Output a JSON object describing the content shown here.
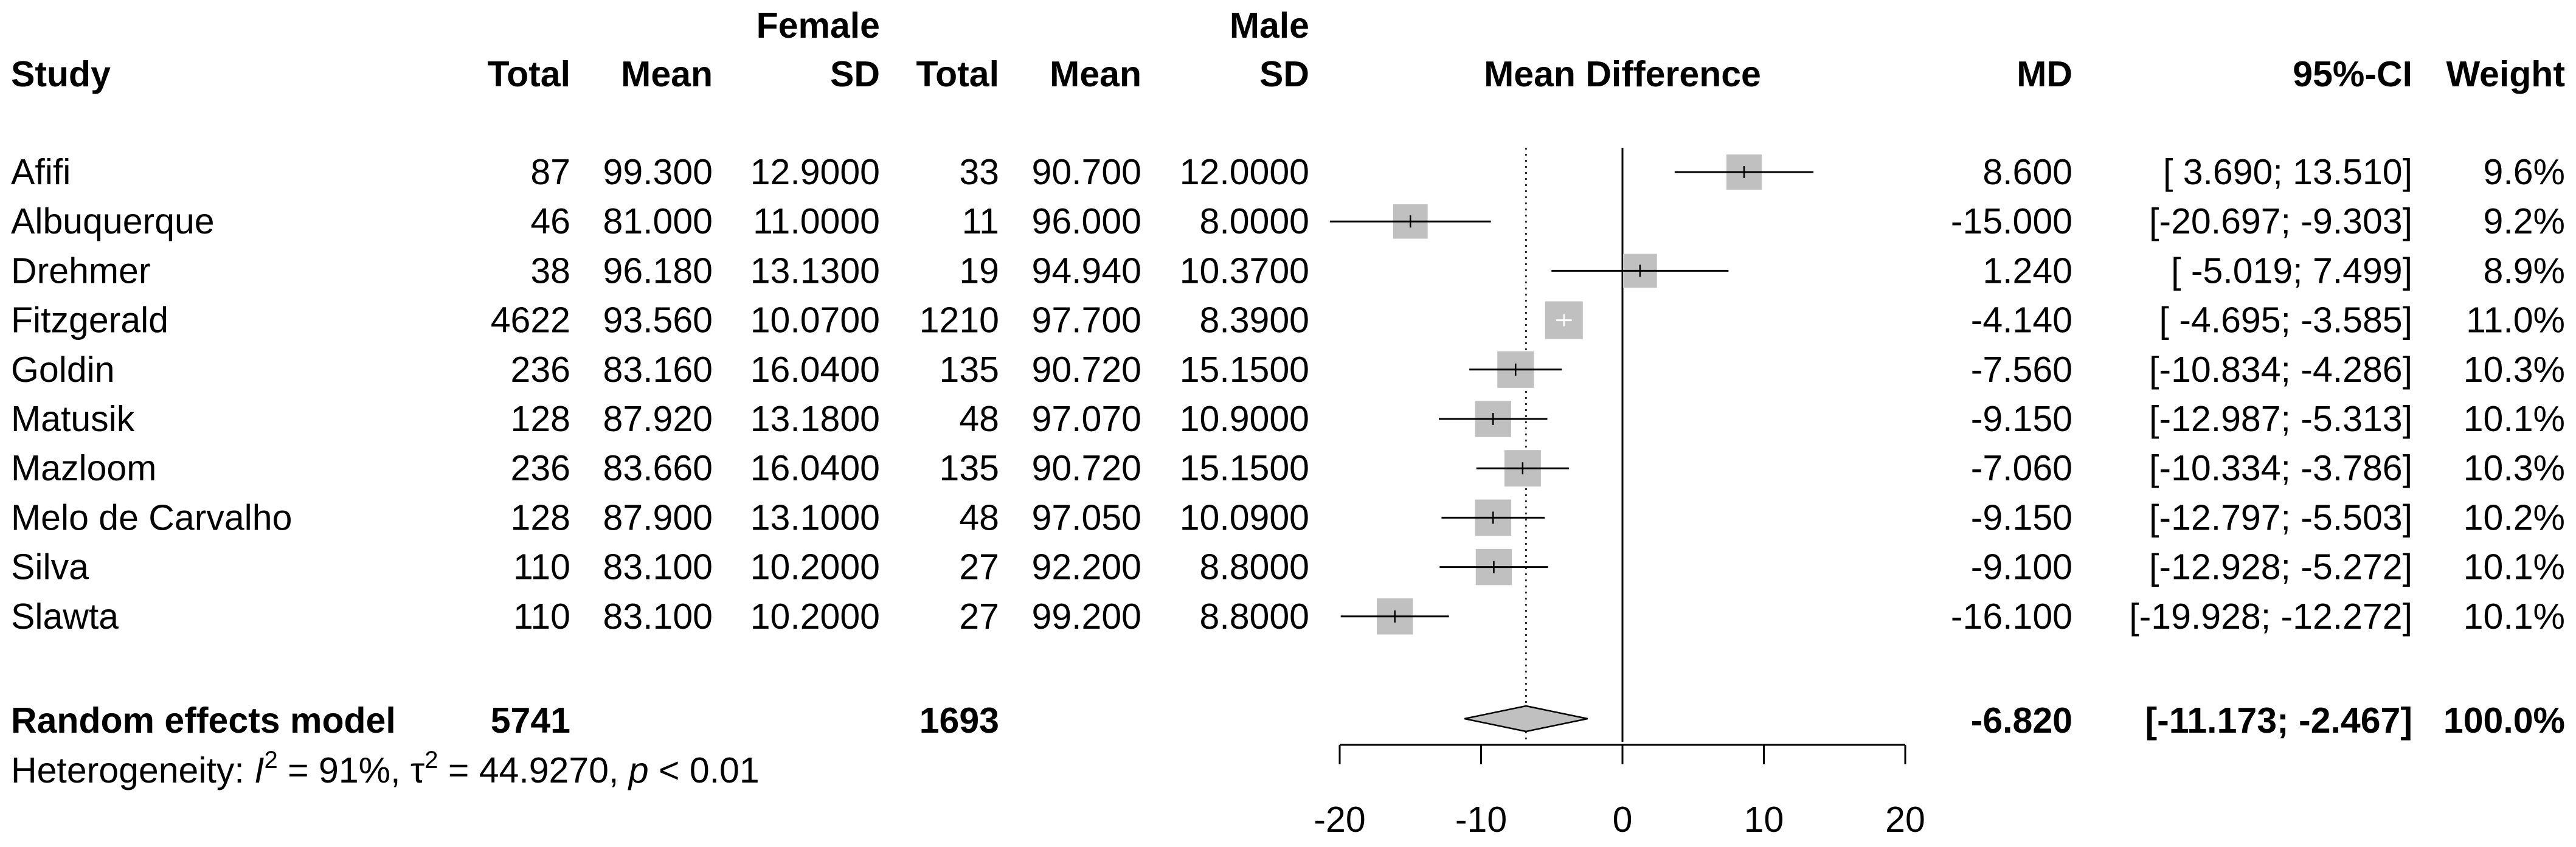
{
  "chart_data": {
    "type": "forest",
    "headers": {
      "group1": "Female",
      "group2": "Male",
      "study": "Study",
      "total": "Total",
      "mean": "Mean",
      "sd": "SD",
      "plot": "Mean Difference",
      "md": "MD",
      "ci": "95%-CI",
      "weight": "Weight"
    },
    "studies": [
      {
        "study": "Afifi",
        "total_f": "87",
        "mean_f": "99.300",
        "sd_f": "12.9000",
        "total_m": "33",
        "mean_m": "90.700",
        "sd_m": "12.0000",
        "md": 8.6,
        "lo": 3.69,
        "hi": 13.51,
        "md_text": "8.600",
        "ci_text": "[ 3.690; 13.510]",
        "weight_text": "9.6%",
        "weight": 9.6
      },
      {
        "study": "Albuquerque",
        "total_f": "46",
        "mean_f": "81.000",
        "sd_f": "11.0000",
        "total_m": "11",
        "mean_m": "96.000",
        "sd_m": "8.0000",
        "md": -15.0,
        "lo": -20.697,
        "hi": -9.303,
        "md_text": "-15.000",
        "ci_text": "[-20.697; -9.303]",
        "weight_text": "9.2%",
        "weight": 9.2
      },
      {
        "study": "Drehmer",
        "total_f": "38",
        "mean_f": "96.180",
        "sd_f": "13.1300",
        "total_m": "19",
        "mean_m": "94.940",
        "sd_m": "10.3700",
        "md": 1.24,
        "lo": -5.019,
        "hi": 7.499,
        "md_text": "1.240",
        "ci_text": "[ -5.019; 7.499]",
        "weight_text": "8.9%",
        "weight": 8.9
      },
      {
        "study": "Fitzgerald",
        "total_f": "4622",
        "mean_f": "93.560",
        "sd_f": "10.0700",
        "total_m": "1210",
        "mean_m": "97.700",
        "sd_m": "8.3900",
        "md": -4.14,
        "lo": -4.695,
        "hi": -3.585,
        "md_text": "-4.140",
        "ci_text": "[ -4.695; -3.585]",
        "weight_text": "11.0%",
        "weight": 11.0
      },
      {
        "study": "Goldin",
        "total_f": "236",
        "mean_f": "83.160",
        "sd_f": "16.0400",
        "total_m": "135",
        "mean_m": "90.720",
        "sd_m": "15.1500",
        "md": -7.56,
        "lo": -10.834,
        "hi": -4.286,
        "md_text": "-7.560",
        "ci_text": "[-10.834; -4.286]",
        "weight_text": "10.3%",
        "weight": 10.3
      },
      {
        "study": "Matusik",
        "total_f": "128",
        "mean_f": "87.920",
        "sd_f": "13.1800",
        "total_m": "48",
        "mean_m": "97.070",
        "sd_m": "10.9000",
        "md": -9.15,
        "lo": -12.987,
        "hi": -5.313,
        "md_text": "-9.150",
        "ci_text": "[-12.987; -5.313]",
        "weight_text": "10.1%",
        "weight": 10.1
      },
      {
        "study": "Mazloom",
        "total_f": "236",
        "mean_f": "83.660",
        "sd_f": "16.0400",
        "total_m": "135",
        "mean_m": "90.720",
        "sd_m": "15.1500",
        "md": -7.06,
        "lo": -10.334,
        "hi": -3.786,
        "md_text": "-7.060",
        "ci_text": "[-10.334; -3.786]",
        "weight_text": "10.3%",
        "weight": 10.3
      },
      {
        "study": "Melo de Carvalho",
        "total_f": "128",
        "mean_f": "87.900",
        "sd_f": "13.1000",
        "total_m": "48",
        "mean_m": "97.050",
        "sd_m": "10.0900",
        "md": -9.15,
        "lo": -12.797,
        "hi": -5.503,
        "md_text": "-9.150",
        "ci_text": "[-12.797; -5.503]",
        "weight_text": "10.2%",
        "weight": 10.2
      },
      {
        "study": "Silva",
        "total_f": "110",
        "mean_f": "83.100",
        "sd_f": "10.2000",
        "total_m": "27",
        "mean_m": "92.200",
        "sd_m": "8.8000",
        "md": -9.1,
        "lo": -12.928,
        "hi": -5.272,
        "md_text": "-9.100",
        "ci_text": "[-12.928; -5.272]",
        "weight_text": "10.1%",
        "weight": 10.1
      },
      {
        "study": "Slawta",
        "total_f": "110",
        "mean_f": "83.100",
        "sd_f": "10.2000",
        "total_m": "27",
        "mean_m": "99.200",
        "sd_m": "8.8000",
        "md": -16.1,
        "lo": -19.928,
        "hi": -12.272,
        "md_text": "-16.100",
        "ci_text": "[-19.928; -12.272]",
        "weight_text": "10.1%",
        "weight": 10.1
      }
    ],
    "pooled": {
      "label": "Random effects model",
      "total_f": "5741",
      "total_m": "1693",
      "md": -6.82,
      "lo": -11.173,
      "hi": -2.467,
      "md_text": "-6.820",
      "ci_text": "[-11.173; -2.467]",
      "weight_text": "100.0%"
    },
    "heterogeneity": {
      "prefix": "Heterogeneity: ",
      "i2_symbol": "I",
      "i2_sup": "2",
      "i2_value": " = 91%, ",
      "tau_symbol": "τ",
      "tau_sup": "2",
      "tau_value": " = 44.9270, ",
      "p_symbol": "p",
      "p_value": " < 0.01"
    },
    "x_axis": {
      "ticks": [
        -20,
        -10,
        0,
        10,
        20
      ],
      "tick_labels": [
        "-20",
        "-10",
        "0",
        "10",
        "20"
      ],
      "range": [
        -20,
        20
      ],
      "null_line": 0
    },
    "colors": {
      "box": "#c0c0c0",
      "diamond": "#c0c0c0",
      "line": "#000000",
      "fitz_ci": "#ffffff"
    }
  }
}
